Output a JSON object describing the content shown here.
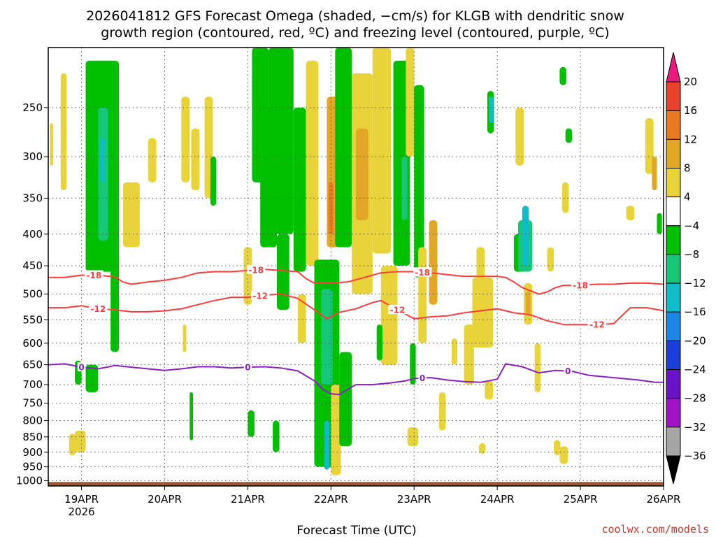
{
  "title_line1": "2026041812 GFS Forecast Omega (shaded, −cm/s) for KLGB with dendritic snow",
  "title_line2": "growth region (contoured, red, ºC) and freezing level (contoured, purple, ºC)",
  "credit": "coolwx.com/models",
  "chart_data": {
    "type": "heatmap",
    "title": "2026041812 GFS Forecast Omega (shaded, −cm/s) for KLGB with dendritic snow growth region (contoured, red, ºC) and freezing level (contoured, purple, ºC)",
    "xlabel": "Forecast Time (UTC)",
    "ylabel": "",
    "x_range_days": [
      18.6,
      26.0
    ],
    "y_range_hpa": [
      200,
      1020
    ],
    "x_ticks": [
      {
        "day": 19,
        "label": "19APR",
        "sublabel": "2026"
      },
      {
        "day": 20,
        "label": "20APR",
        "sublabel": ""
      },
      {
        "day": 21,
        "label": "21APR",
        "sublabel": ""
      },
      {
        "day": 22,
        "label": "22APR",
        "sublabel": ""
      },
      {
        "day": 23,
        "label": "23APR",
        "sublabel": ""
      },
      {
        "day": 24,
        "label": "24APR",
        "sublabel": ""
      },
      {
        "day": 25,
        "label": "25APR",
        "sublabel": ""
      },
      {
        "day": 26,
        "label": "26APR",
        "sublabel": ""
      }
    ],
    "y_ticks": [
      250,
      300,
      350,
      400,
      450,
      500,
      550,
      600,
      650,
      700,
      750,
      800,
      850,
      900,
      950,
      1000
    ],
    "colorbar": {
      "labels": [
        "20",
        "16",
        "12",
        "8",
        "4",
        "−4",
        "−8",
        "−12",
        "−16",
        "−20",
        "−24",
        "−28",
        "−32",
        "−36"
      ],
      "bins": [
        {
          "lo": 20,
          "hi": null,
          "color": "#ea1a7f"
        },
        {
          "lo": 16,
          "hi": 20,
          "color": "#e8412c"
        },
        {
          "lo": 12,
          "hi": 16,
          "color": "#ea7a22"
        },
        {
          "lo": 8,
          "hi": 12,
          "color": "#e3a728"
        },
        {
          "lo": 4,
          "hi": 8,
          "color": "#e8d43a"
        },
        {
          "lo": -4,
          "hi": 4,
          "color": "#ffffff"
        },
        {
          "lo": -8,
          "hi": -4,
          "color": "#00c000"
        },
        {
          "lo": -12,
          "hi": -8,
          "color": "#15c776"
        },
        {
          "lo": -16,
          "hi": -12,
          "color": "#10bcc8"
        },
        {
          "lo": -20,
          "hi": -16,
          "color": "#1b88e8"
        },
        {
          "lo": -24,
          "hi": -20,
          "color": "#1b3fd8"
        },
        {
          "lo": -28,
          "hi": -24,
          "color": "#6a12c8"
        },
        {
          "lo": -32,
          "hi": -28,
          "color": "#a112c8"
        },
        {
          "lo": -36,
          "hi": -32,
          "color": "#a6a6a6"
        },
        {
          "lo": null,
          "hi": -36,
          "color": "#000000"
        }
      ]
    },
    "omega_regions": [
      {
        "t0": 18.62,
        "t1": 18.66,
        "p0": 265,
        "p1": 310,
        "level": "4"
      },
      {
        "t0": 18.75,
        "t1": 18.82,
        "p0": 220,
        "p1": 340,
        "level": "4"
      },
      {
        "t0": 18.92,
        "t1": 19.0,
        "p0": 640,
        "p1": 700,
        "level": "-4"
      },
      {
        "t0": 18.85,
        "t1": 18.93,
        "p0": 840,
        "p1": 910,
        "level": "4"
      },
      {
        "t0": 18.92,
        "t1": 19.05,
        "p0": 830,
        "p1": 900,
        "level": "4"
      },
      {
        "t0": 19.05,
        "t1": 19.2,
        "p0": 650,
        "p1": 720,
        "level": "-4"
      },
      {
        "t0": 19.05,
        "t1": 19.45,
        "p0": 210,
        "p1": 460,
        "level": "-4"
      },
      {
        "t0": 19.2,
        "t1": 19.32,
        "p0": 250,
        "p1": 410,
        "level": "-8"
      },
      {
        "t0": 19.22,
        "t1": 19.28,
        "p0": 280,
        "p1": 330,
        "level": "-12"
      },
      {
        "t0": 19.35,
        "t1": 19.45,
        "p0": 430,
        "p1": 620,
        "level": "-4"
      },
      {
        "t0": 19.5,
        "t1": 19.7,
        "p0": 330,
        "p1": 420,
        "level": "4"
      },
      {
        "t0": 19.8,
        "t1": 19.9,
        "p0": 280,
        "p1": 330,
        "level": "4"
      },
      {
        "t0": 20.2,
        "t1": 20.3,
        "p0": 240,
        "p1": 330,
        "level": "4"
      },
      {
        "t0": 20.32,
        "t1": 20.42,
        "p0": 270,
        "p1": 340,
        "level": "4"
      },
      {
        "t0": 20.48,
        "t1": 20.58,
        "p0": 240,
        "p1": 350,
        "level": "4"
      },
      {
        "t0": 20.55,
        "t1": 20.62,
        "p0": 300,
        "p1": 360,
        "level": "-4"
      },
      {
        "t0": 20.22,
        "t1": 20.26,
        "p0": 560,
        "p1": 620,
        "level": "4"
      },
      {
        "t0": 20.3,
        "t1": 20.34,
        "p0": 720,
        "p1": 860,
        "level": "-4"
      },
      {
        "t0": 20.95,
        "t1": 21.05,
        "p0": 420,
        "p1": 520,
        "level": "4"
      },
      {
        "t0": 21.0,
        "t1": 21.08,
        "p0": 770,
        "p1": 850,
        "level": "-4"
      },
      {
        "t0": 21.05,
        "t1": 21.25,
        "p0": 200,
        "p1": 330,
        "level": "-4"
      },
      {
        "t0": 21.15,
        "t1": 21.35,
        "p0": 250,
        "p1": 420,
        "level": "-4"
      },
      {
        "t0": 21.25,
        "t1": 21.55,
        "p0": 200,
        "p1": 400,
        "level": "-4"
      },
      {
        "t0": 21.35,
        "t1": 21.5,
        "p0": 400,
        "p1": 530,
        "level": "-4"
      },
      {
        "t0": 21.3,
        "t1": 21.38,
        "p0": 800,
        "p1": 900,
        "level": "-4"
      },
      {
        "t0": 21.55,
        "t1": 21.7,
        "p0": 250,
        "p1": 460,
        "level": "-4"
      },
      {
        "t0": 21.6,
        "t1": 21.7,
        "p0": 500,
        "p1": 600,
        "level": "4"
      },
      {
        "t0": 21.7,
        "t1": 21.85,
        "p0": 210,
        "p1": 450,
        "level": "4"
      },
      {
        "t0": 21.8,
        "t1": 22.1,
        "p0": 440,
        "p1": 950,
        "level": "-4"
      },
      {
        "t0": 21.88,
        "t1": 22.02,
        "p0": 490,
        "p1": 700,
        "level": "-8"
      },
      {
        "t0": 21.92,
        "t1": 21.98,
        "p0": 800,
        "p1": 960,
        "level": "-12"
      },
      {
        "t0": 21.95,
        "t1": 22.1,
        "p0": 240,
        "p1": 420,
        "level": "8"
      },
      {
        "t0": 21.97,
        "t1": 22.03,
        "p0": 330,
        "p1": 400,
        "level": "12"
      },
      {
        "t0": 22.0,
        "t1": 22.12,
        "p0": 700,
        "p1": 980,
        "level": "4"
      },
      {
        "t0": 22.05,
        "t1": 22.25,
        "p0": 200,
        "p1": 420,
        "level": "-4"
      },
      {
        "t0": 22.1,
        "t1": 22.25,
        "p0": 620,
        "p1": 880,
        "level": "-4"
      },
      {
        "t0": 22.25,
        "t1": 22.5,
        "p0": 220,
        "p1": 500,
        "level": "4"
      },
      {
        "t0": 22.3,
        "t1": 22.45,
        "p0": 270,
        "p1": 380,
        "level": "8"
      },
      {
        "t0": 22.5,
        "t1": 22.72,
        "p0": 200,
        "p1": 430,
        "level": "4"
      },
      {
        "t0": 22.6,
        "t1": 22.8,
        "p0": 450,
        "p1": 650,
        "level": "4"
      },
      {
        "t0": 22.55,
        "t1": 22.62,
        "p0": 560,
        "p1": 640,
        "level": "-4"
      },
      {
        "t0": 22.75,
        "t1": 22.95,
        "p0": 210,
        "p1": 450,
        "level": "-4"
      },
      {
        "t0": 22.85,
        "t1": 22.92,
        "p0": 300,
        "p1": 380,
        "level": "-8"
      },
      {
        "t0": 22.9,
        "t1": 23.0,
        "p0": 200,
        "p1": 300,
        "level": "4"
      },
      {
        "t0": 23.0,
        "t1": 23.12,
        "p0": 230,
        "p1": 470,
        "level": "-4"
      },
      {
        "t0": 22.95,
        "t1": 23.02,
        "p0": 600,
        "p1": 700,
        "level": "-4"
      },
      {
        "t0": 22.92,
        "t1": 23.05,
        "p0": 820,
        "p1": 880,
        "level": "4"
      },
      {
        "t0": 23.05,
        "t1": 23.15,
        "p0": 420,
        "p1": 600,
        "level": "4"
      },
      {
        "t0": 23.18,
        "t1": 23.28,
        "p0": 380,
        "p1": 520,
        "level": "8"
      },
      {
        "t0": 23.3,
        "t1": 23.38,
        "p0": 720,
        "p1": 830,
        "level": "4"
      },
      {
        "t0": 23.45,
        "t1": 23.52,
        "p0": 590,
        "p1": 650,
        "level": "4"
      },
      {
        "t0": 23.6,
        "t1": 23.72,
        "p0": 560,
        "p1": 700,
        "level": "4"
      },
      {
        "t0": 23.75,
        "t1": 23.85,
        "p0": 420,
        "p1": 520,
        "level": "4"
      },
      {
        "t0": 23.7,
        "t1": 23.95,
        "p0": 470,
        "p1": 610,
        "level": "4"
      },
      {
        "t0": 23.85,
        "t1": 23.95,
        "p0": 690,
        "p1": 740,
        "level": "4"
      },
      {
        "t0": 23.78,
        "t1": 23.86,
        "p0": 870,
        "p1": 905,
        "level": "4"
      },
      {
        "t0": 23.88,
        "t1": 23.96,
        "p0": 235,
        "p1": 275,
        "level": "-4"
      },
      {
        "t0": 23.9,
        "t1": 23.95,
        "p0": 240,
        "p1": 265,
        "level": "-12"
      },
      {
        "t0": 24.22,
        "t1": 24.32,
        "p0": 250,
        "p1": 310,
        "level": "4"
      },
      {
        "t0": 24.2,
        "t1": 24.35,
        "p0": 400,
        "p1": 460,
        "level": "-4"
      },
      {
        "t0": 24.25,
        "t1": 24.42,
        "p0": 380,
        "p1": 460,
        "level": "-8"
      },
      {
        "t0": 24.3,
        "t1": 24.38,
        "p0": 360,
        "p1": 450,
        "level": "-12"
      },
      {
        "t0": 24.32,
        "t1": 24.42,
        "p0": 480,
        "p1": 560,
        "level": "4"
      },
      {
        "t0": 24.34,
        "t1": 24.4,
        "p0": 495,
        "p1": 540,
        "level": "8"
      },
      {
        "t0": 24.45,
        "t1": 24.52,
        "p0": 600,
        "p1": 720,
        "level": "4"
      },
      {
        "t0": 24.6,
        "t1": 24.68,
        "p0": 420,
        "p1": 460,
        "level": "4"
      },
      {
        "t0": 24.68,
        "t1": 24.76,
        "p0": 860,
        "p1": 910,
        "level": "4"
      },
      {
        "t0": 24.75,
        "t1": 24.85,
        "p0": 880,
        "p1": 940,
        "level": "4"
      },
      {
        "t0": 24.78,
        "t1": 24.86,
        "p0": 330,
        "p1": 370,
        "level": "4"
      },
      {
        "t0": 24.82,
        "t1": 24.9,
        "p0": 270,
        "p1": 285,
        "level": "-4"
      },
      {
        "t0": 24.75,
        "t1": 24.83,
        "p0": 215,
        "p1": 230,
        "level": "-4"
      },
      {
        "t0": 25.55,
        "t1": 25.65,
        "p0": 360,
        "p1": 380,
        "level": "4"
      },
      {
        "t0": 25.78,
        "t1": 25.88,
        "p0": 260,
        "p1": 320,
        "level": "4"
      },
      {
        "t0": 25.86,
        "t1": 25.92,
        "p0": 300,
        "p1": 340,
        "level": "8"
      },
      {
        "t0": 25.92,
        "t1": 25.98,
        "p0": 370,
        "p1": 400,
        "level": "-4"
      }
    ],
    "series": [
      {
        "name": "-18",
        "color": "#ff3b3b",
        "label": "-18",
        "label_at": [
          19.15,
          21.1,
          23.1,
          25.0
        ],
        "x": [
          18.6,
          18.8,
          19.0,
          19.2,
          19.4,
          19.5,
          19.6,
          19.8,
          20.0,
          20.2,
          20.4,
          20.6,
          20.8,
          21.0,
          21.2,
          21.4,
          21.6,
          21.7,
          21.8,
          22.0,
          22.2,
          22.4,
          22.6,
          22.8,
          23.0,
          23.2,
          23.4,
          23.6,
          23.8,
          24.0,
          24.1,
          24.2,
          24.3,
          24.5,
          24.6,
          24.7,
          24.8,
          25.0,
          25.2,
          25.4,
          25.6,
          25.8,
          26.0
        ],
        "values": [
          470,
          470,
          466,
          466,
          469,
          478,
          482,
          478,
          475,
          470,
          462,
          460,
          460,
          458,
          456,
          458,
          460,
          472,
          480,
          480,
          478,
          470,
          462,
          460,
          460,
          462,
          465,
          468,
          468,
          468,
          470,
          478,
          488,
          500,
          496,
          488,
          484,
          484,
          482,
          482,
          480,
          480,
          482
        ]
      },
      {
        "name": "-12",
        "color": "#ff3b3b",
        "label": "-12",
        "label_at": [
          19.2,
          21.15,
          22.8,
          25.2
        ],
        "x": [
          18.6,
          18.8,
          19.0,
          19.2,
          19.4,
          19.6,
          19.8,
          20.0,
          20.2,
          20.4,
          20.6,
          20.8,
          21.0,
          21.2,
          21.4,
          21.6,
          21.8,
          21.95,
          22.1,
          22.3,
          22.5,
          22.6,
          22.8,
          23.0,
          23.2,
          23.4,
          23.6,
          23.8,
          24.0,
          24.2,
          24.4,
          24.6,
          24.8,
          25.0,
          25.2,
          25.4,
          25.6,
          25.8,
          26.0
        ],
        "values": [
          526,
          526,
          522,
          528,
          530,
          534,
          534,
          532,
          528,
          520,
          512,
          506,
          506,
          502,
          500,
          508,
          530,
          548,
          535,
          528,
          516,
          512,
          530,
          548,
          544,
          542,
          536,
          532,
          528,
          536,
          540,
          552,
          560,
          560,
          560,
          558,
          526,
          526,
          532
        ]
      },
      {
        "name": "0",
        "color": "#8a1fc4",
        "label": "0",
        "label_at": [
          19.0,
          21.0,
          23.1,
          24.85
        ],
        "x": [
          18.6,
          18.8,
          19.0,
          19.2,
          19.4,
          19.6,
          19.8,
          20.0,
          20.2,
          20.4,
          20.6,
          20.8,
          21.0,
          21.2,
          21.4,
          21.6,
          21.8,
          21.9,
          22.0,
          22.1,
          22.2,
          22.3,
          22.5,
          22.7,
          22.9,
          23.0,
          23.2,
          23.4,
          23.6,
          23.8,
          24.0,
          24.1,
          24.3,
          24.5,
          24.7,
          24.9,
          25.1,
          25.3,
          25.5,
          25.7,
          25.9,
          26.0
        ],
        "values": [
          650,
          648,
          656,
          660,
          652,
          656,
          660,
          664,
          660,
          655,
          655,
          658,
          656,
          655,
          658,
          665,
          690,
          712,
          724,
          726,
          712,
          700,
          700,
          696,
          690,
          684,
          682,
          688,
          692,
          694,
          686,
          648,
          655,
          670,
          664,
          666,
          676,
          680,
          684,
          688,
          694,
          694
        ]
      }
    ]
  }
}
